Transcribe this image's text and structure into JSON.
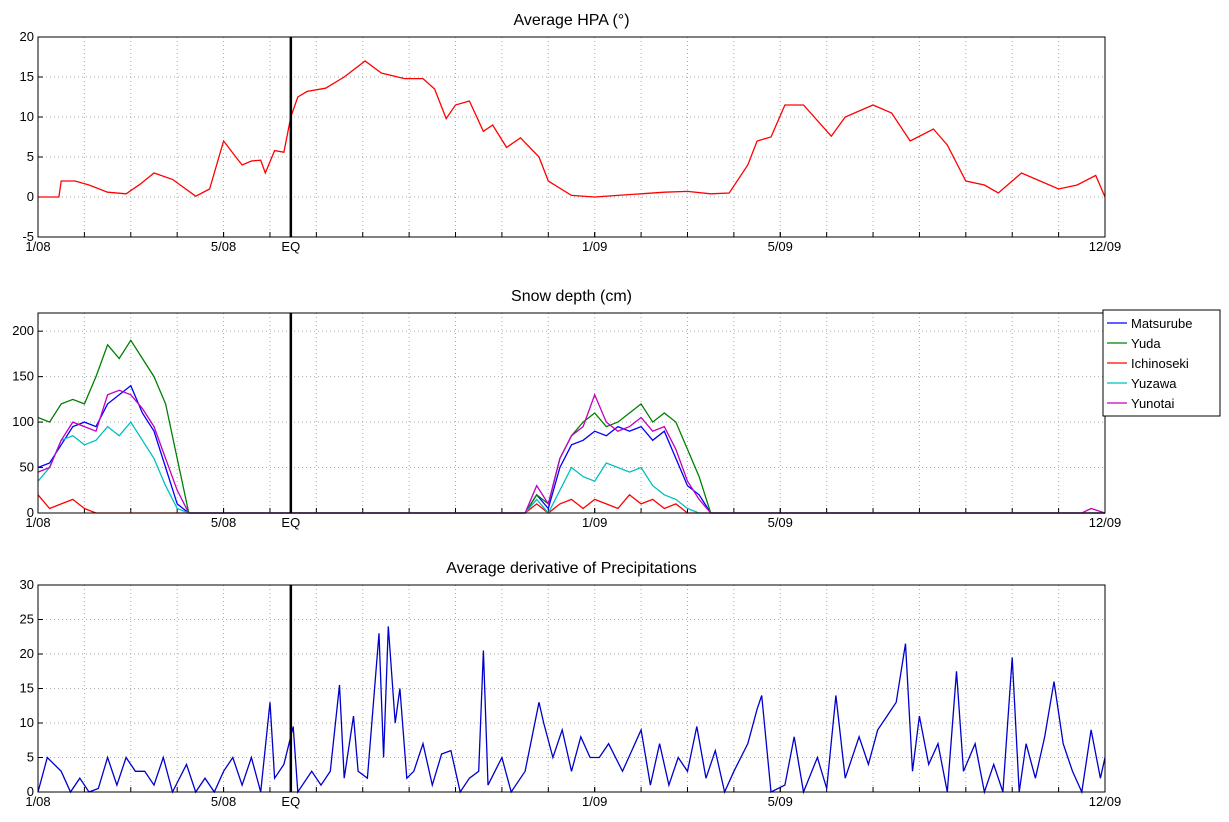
{
  "chart_data": [
    {
      "type": "line",
      "title": "Average HPA (°)",
      "grid": true,
      "xlim": [
        0,
        23
      ],
      "xticks": [
        {
          "value": 0,
          "label": "1/08"
        },
        {
          "value": 4,
          "label": "5/08"
        },
        {
          "value": 5.45,
          "label": "EQ",
          "line": "#000000"
        },
        {
          "value": 12,
          "label": "1/09"
        },
        {
          "value": 16,
          "label": "5/09"
        },
        {
          "value": 23,
          "label": "12/09"
        }
      ],
      "xgrid": [
        1,
        2,
        3,
        4,
        5,
        6,
        7,
        8,
        9,
        10,
        11,
        12,
        13,
        14,
        15,
        16,
        17,
        18,
        19,
        20,
        21,
        22
      ],
      "ylim": [
        -5,
        20
      ],
      "yticks": [
        -5,
        0,
        5,
        10,
        15,
        20
      ],
      "x": [
        0,
        0.45,
        0.5,
        0.8,
        1.1,
        1.5,
        1.9,
        2.2,
        2.5,
        2.9,
        3.4,
        3.7,
        4.0,
        4.2,
        4.4,
        4.6,
        4.8,
        4.9,
        5.1,
        5.3,
        5.45,
        5.6,
        5.8,
        6.2,
        6.6,
        7.05,
        7.4,
        7.9,
        8.3,
        8.55,
        8.8,
        9.0,
        9.3,
        9.6,
        9.8,
        10.1,
        10.4,
        10.8,
        11.0,
        11.5,
        12.0,
        12.5,
        13.0,
        13.5,
        14.0,
        14.5,
        14.9,
        15.3,
        15.5,
        15.8,
        16.1,
        16.5,
        17.1,
        17.4,
        18.0,
        18.4,
        18.8,
        19.3,
        19.6,
        20.0,
        20.4,
        20.7,
        21.2,
        21.6,
        22.0,
        22.4,
        22.8,
        23
      ],
      "series": [
        {
          "color": "#ff0000",
          "values": [
            0,
            0,
            2,
            2,
            1.5,
            0.6,
            0.4,
            1.6,
            3,
            2.2,
            0.1,
            1,
            7,
            5.5,
            4,
            4.5,
            4.6,
            3,
            5.8,
            5.6,
            10,
            12.5,
            13.2,
            13.6,
            15,
            17,
            15.5,
            14.8,
            14.8,
            13.5,
            9.8,
            11.5,
            12,
            8.2,
            9,
            6.2,
            7.4,
            5,
            2,
            0.2,
            0,
            0.2,
            0.4,
            0.6,
            0.7,
            0.4,
            0.5,
            4,
            7,
            7.5,
            11.5,
            11.5,
            7.6,
            10,
            11.5,
            10.5,
            7,
            8.5,
            6.5,
            2,
            1.5,
            0.5,
            3,
            2,
            1,
            1.5,
            2.7,
            0
          ]
        }
      ]
    },
    {
      "type": "line",
      "title": "Snow depth (cm)",
      "grid": true,
      "legend": "outside-right",
      "xlim": [
        0,
        23
      ],
      "xticks": [
        {
          "value": 0,
          "label": "1/08"
        },
        {
          "value": 4,
          "label": "5/08"
        },
        {
          "value": 5.45,
          "label": "EQ",
          "line": "#000000"
        },
        {
          "value": 12,
          "label": "1/09"
        },
        {
          "value": 16,
          "label": "5/09"
        },
        {
          "value": 23,
          "label": "12/09"
        }
      ],
      "xgrid": [
        1,
        2,
        3,
        4,
        5,
        6,
        7,
        8,
        9,
        10,
        11,
        12,
        13,
        14,
        15,
        16,
        17,
        18,
        19,
        20,
        21,
        22
      ],
      "ylim": [
        0,
        220
      ],
      "yticks": [
        0,
        50,
        100,
        150,
        200
      ],
      "x": [
        0,
        0.25,
        0.5,
        0.75,
        1,
        1.25,
        1.5,
        1.75,
        2,
        2.25,
        2.5,
        2.75,
        3,
        3.25,
        3.5,
        3.75,
        4,
        5,
        10,
        10.5,
        10.75,
        11,
        11.25,
        11.5,
        11.75,
        12,
        12.25,
        12.5,
        12.75,
        13,
        13.25,
        13.5,
        13.75,
        14,
        14.25,
        14.5,
        14.75,
        15,
        16,
        22.5,
        22.7,
        23
      ],
      "series": [
        {
          "name": "Matsurube",
          "color": "#0000ff",
          "values": [
            50,
            55,
            75,
            95,
            100,
            95,
            120,
            130,
            140,
            110,
            90,
            50,
            10,
            0,
            0,
            0,
            0,
            0,
            0,
            0,
            20,
            5,
            50,
            75,
            80,
            90,
            85,
            95,
            90,
            95,
            80,
            90,
            60,
            30,
            20,
            0,
            0,
            0,
            0,
            0,
            0,
            0
          ]
        },
        {
          "name": "Yuda",
          "color": "#008000",
          "values": [
            105,
            100,
            120,
            125,
            120,
            150,
            185,
            170,
            190,
            170,
            150,
            120,
            60,
            0,
            0,
            0,
            0,
            0,
            0,
            0,
            20,
            10,
            60,
            85,
            100,
            110,
            95,
            100,
            110,
            120,
            100,
            110,
            100,
            70,
            40,
            0,
            0,
            0,
            0,
            0,
            0,
            0
          ]
        },
        {
          "name": "Ichinoseki",
          "color": "#ff0000",
          "values": [
            20,
            5,
            10,
            15,
            5,
            0,
            0,
            0,
            0,
            0,
            0,
            0,
            0,
            0,
            0,
            0,
            0,
            0,
            0,
            0,
            10,
            0,
            10,
            15,
            5,
            15,
            10,
            5,
            20,
            10,
            15,
            5,
            10,
            0,
            0,
            0,
            0,
            0,
            0,
            0,
            0,
            0
          ]
        },
        {
          "name": "Yuzawa",
          "color": "#00bfbf",
          "values": [
            35,
            50,
            80,
            85,
            75,
            80,
            95,
            85,
            100,
            80,
            60,
            30,
            5,
            0,
            0,
            0,
            0,
            0,
            0,
            0,
            15,
            0,
            25,
            50,
            40,
            35,
            55,
            50,
            45,
            50,
            30,
            20,
            15,
            5,
            0,
            0,
            0,
            0,
            0,
            0,
            0,
            0
          ]
        },
        {
          "name": "Yunotai",
          "color": "#bf00bf",
          "values": [
            45,
            50,
            80,
            100,
            95,
            90,
            130,
            135,
            130,
            115,
            95,
            60,
            25,
            0,
            0,
            0,
            0,
            0,
            0,
            0,
            30,
            10,
            60,
            85,
            95,
            130,
            100,
            90,
            95,
            105,
            90,
            95,
            70,
            35,
            15,
            0,
            0,
            0,
            0,
            0,
            5,
            0
          ]
        }
      ]
    },
    {
      "type": "line",
      "title": "Average derivative of Precipitations",
      "grid": true,
      "xlim": [
        0,
        23
      ],
      "xticks": [
        {
          "value": 0,
          "label": "1/08"
        },
        {
          "value": 4,
          "label": "5/08"
        },
        {
          "value": 5.45,
          "label": "EQ",
          "line": "#000000"
        },
        {
          "value": 12,
          "label": "1/09"
        },
        {
          "value": 16,
          "label": "5/09"
        },
        {
          "value": 23,
          "label": "12/09"
        }
      ],
      "xgrid": [
        1,
        2,
        3,
        4,
        5,
        6,
        7,
        8,
        9,
        10,
        11,
        12,
        13,
        14,
        15,
        16,
        17,
        18,
        19,
        20,
        21,
        22
      ],
      "ylim": [
        0,
        30
      ],
      "yticks": [
        0,
        5,
        10,
        15,
        20,
        25,
        30
      ],
      "x": [
        0,
        0.2,
        0.5,
        0.7,
        0.9,
        1.1,
        1.3,
        1.5,
        1.7,
        1.9,
        2.1,
        2.3,
        2.5,
        2.7,
        2.9,
        3.2,
        3.4,
        3.6,
        3.8,
        4.0,
        4.2,
        4.4,
        4.6,
        4.8,
        5.0,
        5.1,
        5.3,
        5.5,
        5.6,
        5.9,
        6.1,
        6.3,
        6.5,
        6.6,
        6.8,
        6.9,
        7.1,
        7.35,
        7.45,
        7.55,
        7.7,
        7.8,
        7.95,
        8.1,
        8.3,
        8.5,
        8.7,
        8.9,
        9.1,
        9.3,
        9.5,
        9.6,
        9.7,
        10,
        10.2,
        10.5,
        10.8,
        10.9,
        11.1,
        11.3,
        11.5,
        11.7,
        11.9,
        12.1,
        12.3,
        12.6,
        12.8,
        13.0,
        13.2,
        13.4,
        13.6,
        13.8,
        14.0,
        14.2,
        14.4,
        14.6,
        14.8,
        15.0,
        15.3,
        15.5,
        15.6,
        15.8,
        16.1,
        16.3,
        16.5,
        16.8,
        17.0,
        17.2,
        17.4,
        17.7,
        17.9,
        18.1,
        18.3,
        18.5,
        18.7,
        18.85,
        19.0,
        19.2,
        19.4,
        19.6,
        19.8,
        19.95,
        20.2,
        20.4,
        20.6,
        20.8,
        21.0,
        21.15,
        21.3,
        21.5,
        21.7,
        21.9,
        22.1,
        22.3,
        22.5,
        22.7,
        22.9,
        23
      ],
      "series": [
        {
          "color": "#0000cc",
          "values": [
            0,
            5,
            3,
            0,
            2,
            0,
            0.5,
            5,
            1,
            5,
            3,
            3,
            1,
            5,
            0,
            4,
            0,
            2,
            0,
            3,
            5,
            1,
            5,
            0,
            13,
            2,
            4,
            9.5,
            0,
            3,
            1,
            3,
            15.5,
            2,
            11,
            3,
            2,
            23,
            5,
            24,
            10,
            15,
            2,
            3,
            7,
            1,
            5.5,
            6,
            0,
            2,
            3,
            20.5,
            1,
            5,
            0,
            3,
            13,
            10,
            5,
            9,
            3,
            8,
            5,
            5,
            7,
            3,
            6,
            9,
            1,
            7,
            1,
            5,
            3,
            9.5,
            2,
            6,
            0,
            3,
            7,
            12,
            14,
            0,
            1,
            8,
            0,
            5,
            0.5,
            14,
            2,
            8,
            4,
            9,
            11,
            13,
            21.5,
            3,
            11,
            4,
            7,
            0,
            17.5,
            3,
            7,
            0,
            4,
            0,
            19.5,
            0,
            7,
            2,
            8,
            16,
            7,
            3,
            0,
            9,
            2,
            5
          ]
        }
      ]
    }
  ]
}
